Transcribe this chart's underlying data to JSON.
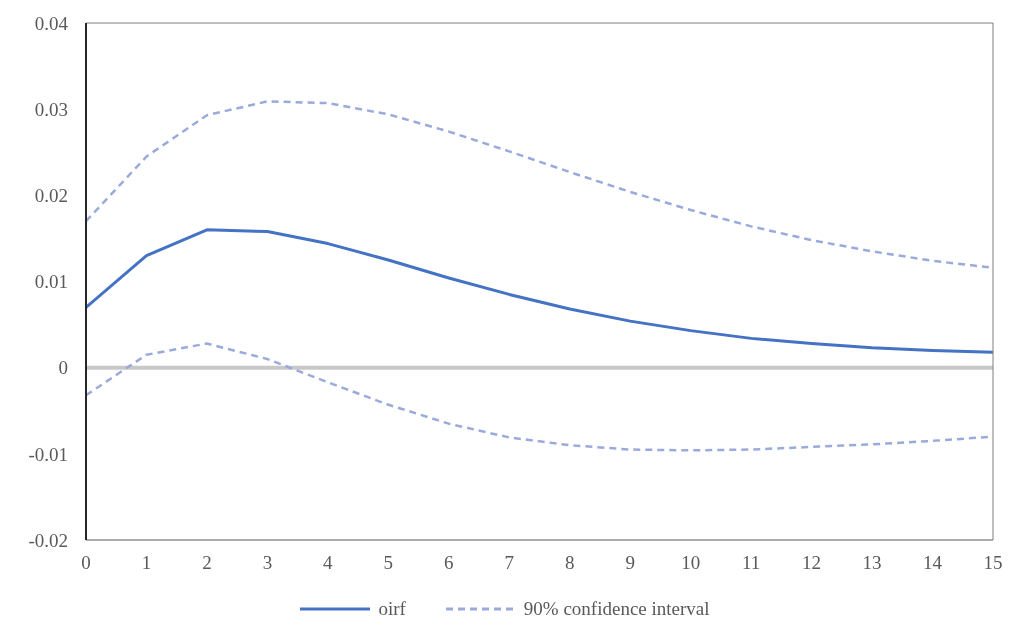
{
  "chart_data": {
    "type": "line",
    "x": [
      0,
      1,
      2,
      3,
      4,
      5,
      6,
      7,
      8,
      9,
      10,
      11,
      12,
      13,
      14,
      15
    ],
    "xlim": [
      0,
      15
    ],
    "xticks": [
      0,
      1,
      2,
      3,
      4,
      5,
      6,
      7,
      8,
      9,
      10,
      11,
      12,
      13,
      14,
      15
    ],
    "ylim": [
      -0.02,
      0.04
    ],
    "yticks": [
      -0.02,
      -0.01,
      0,
      0.01,
      0.02,
      0.03,
      0.04
    ],
    "grid": false,
    "legend": "bottom",
    "marker": "none",
    "ref_lines": [
      {
        "axis": "y",
        "value": 0,
        "color": "#c8c8c8"
      }
    ],
    "series": [
      {
        "name": "oirf",
        "color": "#4472c4",
        "line_style": "solid",
        "values": [
          0.007,
          0.013,
          0.016,
          0.0158,
          0.0144,
          0.0125,
          0.0104,
          0.0085,
          0.0068,
          0.0054,
          0.0043,
          0.0034,
          0.0028,
          0.0023,
          0.002,
          0.0018
        ]
      },
      {
        "name": "90% confidence interval",
        "color": "#9aabdb",
        "line_style": "dashed",
        "values": [
          0.017,
          0.0245,
          0.0293,
          0.0309,
          0.0307,
          0.0294,
          0.0274,
          0.0251,
          0.0227,
          0.0204,
          0.0183,
          0.0164,
          0.0148,
          0.0135,
          0.0124,
          0.0116
        ]
      },
      {
        "color": "#9aabdb",
        "line_style": "dashed",
        "values": [
          -0.0032,
          0.0015,
          0.0028,
          0.001,
          -0.0017,
          -0.0043,
          -0.0065,
          -0.0081,
          -0.009,
          -0.0095,
          -0.0096,
          -0.0095,
          -0.0092,
          -0.0089,
          -0.0085,
          -0.008
        ]
      }
    ]
  }
}
